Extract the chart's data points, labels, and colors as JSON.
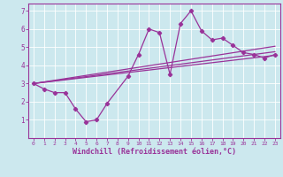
{
  "xlabel": "Windchill (Refroidissement éolien,°C)",
  "background_color": "#cce8ee",
  "plot_bg_color": "#cce8ee",
  "line_color": "#993399",
  "grid_color": "#aacccc",
  "xlim": [
    -0.5,
    23.5
  ],
  "ylim": [
    0,
    7.4
  ],
  "xticks": [
    0,
    1,
    2,
    3,
    4,
    5,
    6,
    7,
    8,
    9,
    10,
    11,
    12,
    13,
    14,
    15,
    16,
    17,
    18,
    19,
    20,
    21,
    22,
    23
  ],
  "yticks": [
    1,
    2,
    3,
    4,
    5,
    6,
    7
  ],
  "main_line_x": [
    0,
    1,
    2,
    3,
    4,
    5,
    6,
    7,
    9,
    10,
    11,
    12,
    13,
    14,
    15,
    16,
    17,
    18,
    19,
    20,
    21,
    22,
    23
  ],
  "main_line_y": [
    3.0,
    2.7,
    2.5,
    2.5,
    1.6,
    0.9,
    1.0,
    1.9,
    3.4,
    4.6,
    6.0,
    5.8,
    3.5,
    6.3,
    7.0,
    5.9,
    5.4,
    5.5,
    5.1,
    4.7,
    4.6,
    4.4,
    4.6
  ],
  "trend1_x": [
    0,
    23
  ],
  "trend1_y": [
    3.0,
    4.55
  ],
  "trend2_x": [
    0,
    23
  ],
  "trend2_y": [
    3.0,
    4.75
  ],
  "trend3_x": [
    0,
    23
  ],
  "trend3_y": [
    3.0,
    5.05
  ]
}
